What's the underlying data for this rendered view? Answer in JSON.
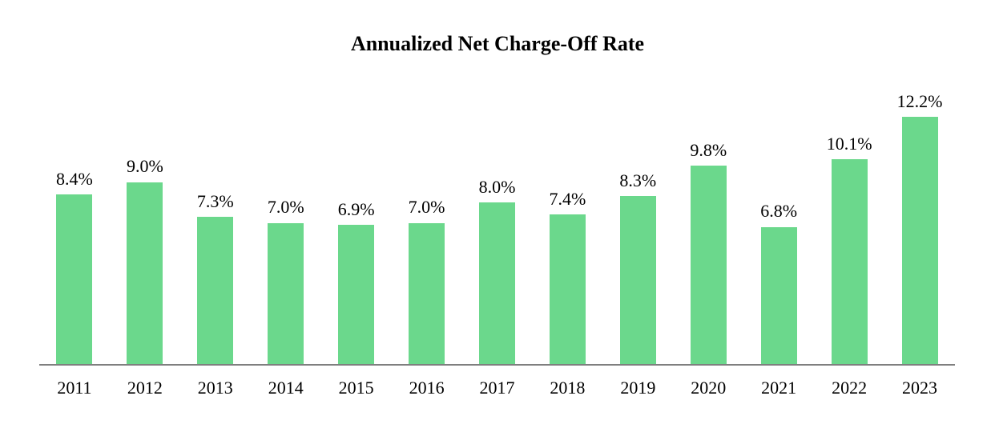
{
  "chart_data": {
    "type": "bar",
    "title": "Annualized Net Charge-Off Rate",
    "categories": [
      "2011",
      "2012",
      "2013",
      "2014",
      "2015",
      "2016",
      "2017",
      "2018",
      "2019",
      "2020",
      "2021",
      "2022",
      "2023"
    ],
    "values": [
      8.4,
      9.0,
      7.3,
      7.0,
      6.9,
      7.0,
      8.0,
      7.4,
      8.3,
      9.8,
      6.8,
      10.1,
      12.2
    ],
    "value_labels": [
      "8.4%",
      "9.0%",
      "7.3%",
      "7.0%",
      "6.9%",
      "7.0%",
      "8.0%",
      "7.4%",
      "8.3%",
      "9.8%",
      "6.8%",
      "10.1%",
      "12.2%"
    ],
    "xlabel": "",
    "ylabel": "",
    "ylim": [
      0,
      14
    ],
    "grid": false,
    "legend_position": "none",
    "bar_color": "#6BD88C",
    "axis_color": "#7F7F7F",
    "text_color": "#000000"
  }
}
